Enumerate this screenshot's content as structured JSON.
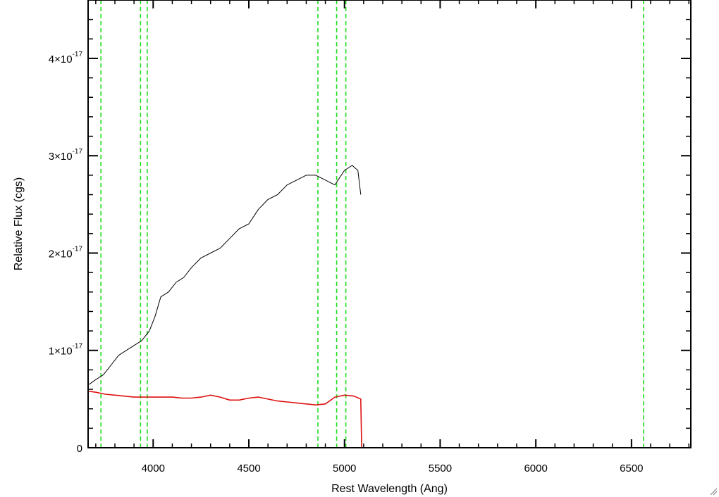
{
  "chart_data": {
    "type": "line",
    "title": "",
    "xlabel": "Rest Wavelength (Ang)",
    "ylabel": "Relative Flux (cgs)",
    "xlim": [
      3660,
      6810
    ],
    "ylim": [
      0,
      4.6e-17
    ],
    "x_ticks": [
      {
        "value": 4000,
        "label": "4000"
      },
      {
        "value": 4500,
        "label": "4500"
      },
      {
        "value": 5000,
        "label": "5000"
      },
      {
        "value": 5500,
        "label": "5500"
      },
      {
        "value": 6000,
        "label": "6000"
      },
      {
        "value": 6500,
        "label": "6500"
      }
    ],
    "y_ticks": [
      {
        "value": 0,
        "mantissa": "0",
        "exponent": ""
      },
      {
        "value": 1e-17,
        "mantissa": "1×10",
        "exponent": "-17"
      },
      {
        "value": 2e-17,
        "mantissa": "2×10",
        "exponent": "-17"
      },
      {
        "value": 3e-17,
        "mantissa": "3×10",
        "exponent": "-17"
      },
      {
        "value": 4e-17,
        "mantissa": "4×10",
        "exponent": "-17"
      }
    ],
    "vertical_lines": {
      "color": "#22dd22",
      "style": "dashed",
      "x": [
        3727,
        3934,
        3969,
        4861,
        4959,
        5007,
        6563
      ]
    },
    "series": [
      {
        "color": "#000000",
        "x": [
          3665,
          3700,
          3740,
          3780,
          3820,
          3860,
          3900,
          3940,
          3980,
          4010,
          4040,
          4080,
          4120,
          4160,
          4200,
          4250,
          4300,
          4350,
          4400,
          4450,
          4500,
          4550,
          4600,
          4650,
          4700,
          4750,
          4800,
          4850,
          4900,
          4950,
          5000,
          5040,
          5070,
          5085
        ],
        "y": [
          6.5e-18,
          7e-18,
          7.5e-18,
          8.5e-18,
          9.5e-18,
          1e-17,
          1.05e-17,
          1.1e-17,
          1.2e-17,
          1.35e-17,
          1.55e-17,
          1.6e-17,
          1.7e-17,
          1.75e-17,
          1.85e-17,
          1.95e-17,
          2e-17,
          2.05e-17,
          2.15e-17,
          2.25e-17,
          2.3e-17,
          2.45e-17,
          2.55e-17,
          2.6e-17,
          2.7e-17,
          2.75e-17,
          2.8e-17,
          2.8e-17,
          2.75e-17,
          2.7e-17,
          2.85e-17,
          2.9e-17,
          2.85e-17,
          2.6e-17
        ]
      },
      {
        "color": "#dd1111",
        "x": [
          3665,
          3700,
          3750,
          3800,
          3850,
          3900,
          3950,
          4000,
          4050,
          4100,
          4150,
          4200,
          4250,
          4300,
          4350,
          4400,
          4450,
          4500,
          4550,
          4600,
          4650,
          4700,
          4750,
          4800,
          4850,
          4900,
          4950,
          5000,
          5050,
          5085,
          5090,
          5500,
          6000,
          6500,
          6810
        ],
        "y": [
          5.8e-18,
          5.7e-18,
          5.5e-18,
          5.4e-18,
          5.3e-18,
          5.2e-18,
          5.2e-18,
          5.2e-18,
          5.2e-18,
          5.2e-18,
          5.1e-18,
          5.1e-18,
          5.2e-18,
          5.4e-18,
          5.2e-18,
          4.9e-18,
          4.9e-18,
          5.1e-18,
          5.2e-18,
          5e-18,
          4.8e-18,
          4.7e-18,
          4.6e-18,
          4.5e-18,
          4.4e-18,
          4.5e-18,
          5.2e-18,
          5.4e-18,
          5.3e-18,
          5e-18,
          0,
          0,
          0,
          0,
          0
        ]
      }
    ],
    "legend": "none",
    "grid": false
  }
}
